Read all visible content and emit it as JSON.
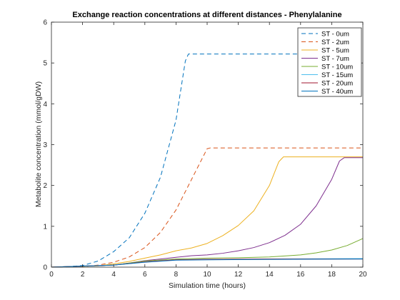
{
  "chart_data": {
    "type": "line",
    "title": "Exchange reaction concentrations at different distances - Phenylalanine",
    "xlabel": "Simulation time (hours)",
    "ylabel": "Metabolite concentration (mmol/gDW)",
    "xlim": [
      0,
      20
    ],
    "ylim": [
      0,
      6
    ],
    "xticks": [
      "0",
      "2",
      "4",
      "6",
      "8",
      "10",
      "12",
      "14",
      "16",
      "18",
      "20"
    ],
    "yticks": [
      "0",
      "1",
      "2",
      "3",
      "4",
      "5",
      "6"
    ],
    "grid": false,
    "legend_position": "top-right",
    "series": [
      {
        "name": "ST - 0um",
        "color": "#0072BD",
        "dash": "dashed",
        "points": [
          [
            0,
            0
          ],
          [
            1,
            0.01
          ],
          [
            2,
            0.04
          ],
          [
            3,
            0.15
          ],
          [
            4,
            0.38
          ],
          [
            5,
            0.72
          ],
          [
            6,
            1.32
          ],
          [
            7,
            2.2
          ],
          [
            8,
            3.6
          ],
          [
            8.6,
            5.05
          ],
          [
            8.8,
            5.22
          ],
          [
            20,
            5.22
          ]
        ]
      },
      {
        "name": "ST - 2um",
        "color": "#D95319",
        "dash": "dashed",
        "points": [
          [
            0,
            0
          ],
          [
            2,
            0.01
          ],
          [
            3,
            0.05
          ],
          [
            4,
            0.12
          ],
          [
            5,
            0.25
          ],
          [
            6,
            0.48
          ],
          [
            7,
            0.85
          ],
          [
            8,
            1.4
          ],
          [
            9,
            2.15
          ],
          [
            10,
            2.9
          ],
          [
            10.2,
            2.92
          ],
          [
            20,
            2.92
          ]
        ]
      },
      {
        "name": "ST - 5um",
        "color": "#EDB120",
        "dash": "solid",
        "points": [
          [
            0,
            0
          ],
          [
            3,
            0.03
          ],
          [
            4,
            0.08
          ],
          [
            5,
            0.14
          ],
          [
            6,
            0.22
          ],
          [
            7,
            0.3
          ],
          [
            8,
            0.4
          ],
          [
            9,
            0.47
          ],
          [
            10,
            0.58
          ],
          [
            11,
            0.77
          ],
          [
            12,
            1.02
          ],
          [
            13,
            1.38
          ],
          [
            14,
            2.0
          ],
          [
            14.6,
            2.58
          ],
          [
            14.9,
            2.7
          ],
          [
            20,
            2.7
          ]
        ]
      },
      {
        "name": "ST - 7um",
        "color": "#7E2F8E",
        "dash": "solid",
        "points": [
          [
            0,
            0
          ],
          [
            4,
            0.05
          ],
          [
            5,
            0.1
          ],
          [
            6,
            0.16
          ],
          [
            7,
            0.2
          ],
          [
            8,
            0.24
          ],
          [
            9,
            0.28
          ],
          [
            10,
            0.3
          ],
          [
            11,
            0.34
          ],
          [
            12,
            0.4
          ],
          [
            13,
            0.48
          ],
          [
            14,
            0.6
          ],
          [
            15,
            0.78
          ],
          [
            16,
            1.05
          ],
          [
            17,
            1.5
          ],
          [
            18,
            2.15
          ],
          [
            18.5,
            2.6
          ],
          [
            18.8,
            2.68
          ],
          [
            20,
            2.68
          ]
        ]
      },
      {
        "name": "ST - 10um",
        "color": "#77AC30",
        "dash": "solid",
        "points": [
          [
            0,
            0
          ],
          [
            4,
            0.05
          ],
          [
            6,
            0.15
          ],
          [
            8,
            0.2
          ],
          [
            10,
            0.22
          ],
          [
            12,
            0.23
          ],
          [
            14,
            0.25
          ],
          [
            16,
            0.3
          ],
          [
            17,
            0.35
          ],
          [
            18,
            0.42
          ],
          [
            19,
            0.53
          ],
          [
            20,
            0.7
          ]
        ]
      },
      {
        "name": "ST - 15um",
        "color": "#4DBEEE",
        "dash": "solid",
        "points": [
          [
            0,
            0
          ],
          [
            4,
            0.05
          ],
          [
            6,
            0.13
          ],
          [
            8,
            0.18
          ],
          [
            10,
            0.19
          ],
          [
            14,
            0.2
          ],
          [
            20,
            0.21
          ]
        ]
      },
      {
        "name": "ST - 20um",
        "color": "#A2142F",
        "dash": "solid",
        "points": [
          [
            0,
            0
          ],
          [
            4,
            0.05
          ],
          [
            6,
            0.13
          ],
          [
            8,
            0.18
          ],
          [
            10,
            0.19
          ],
          [
            14,
            0.2
          ],
          [
            20,
            0.2
          ]
        ]
      },
      {
        "name": "ST - 40um",
        "color": "#0072BD",
        "dash": "solid",
        "points": [
          [
            0,
            0
          ],
          [
            4,
            0.05
          ],
          [
            6,
            0.12
          ],
          [
            8,
            0.17
          ],
          [
            10,
            0.18
          ],
          [
            14,
            0.19
          ],
          [
            20,
            0.2
          ]
        ]
      }
    ]
  }
}
